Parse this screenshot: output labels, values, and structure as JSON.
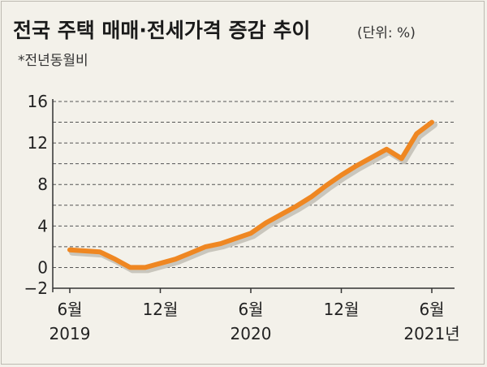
{
  "header": {
    "title": "전국 주택 매매·전세가격 증감 추이",
    "unit": "(단위: %)",
    "subtitle": "*전년동월비"
  },
  "chart_data": {
    "type": "line",
    "title": "전국 주택 매매·전세가격 증감 추이",
    "ylim": [
      -2,
      16
    ],
    "y_ticks": [
      "16",
      "12",
      "8",
      "4",
      "0",
      "−2"
    ],
    "y_tick_values": [
      16,
      12,
      8,
      4,
      0,
      -2
    ],
    "grid": true,
    "x_tick_labels": [
      {
        "month_index": 0,
        "lines": [
          "6월",
          "2019"
        ]
      },
      {
        "month_index": 6,
        "lines": [
          "12월"
        ]
      },
      {
        "month_index": 12,
        "lines": [
          "6월",
          "2020"
        ]
      },
      {
        "month_index": 18,
        "lines": [
          "12월"
        ]
      },
      {
        "month_index": 24,
        "lines": [
          "6월",
          "2021년"
        ]
      }
    ],
    "series": [
      {
        "color": "#ef8722",
        "months": [
          "2019-06",
          "2019-07",
          "2019-08",
          "2019-09",
          "2019-10",
          "2019-11",
          "2019-12",
          "2020-01",
          "2020-02",
          "2020-03",
          "2020-04",
          "2020-05",
          "2020-06",
          "2020-07",
          "2020-08",
          "2020-09",
          "2020-10",
          "2020-11",
          "2020-12",
          "2021-01",
          "2021-02",
          "2021-03",
          "2021-04",
          "2021-05",
          "2021-06"
        ],
        "values": [
          1.7,
          1.6,
          1.5,
          0.8,
          0.0,
          0.0,
          0.4,
          0.8,
          1.4,
          2.0,
          2.3,
          2.8,
          3.3,
          4.3,
          5.1,
          5.9,
          6.8,
          7.9,
          8.9,
          9.8,
          10.6,
          11.4,
          10.5,
          12.9,
          14.0
        ]
      }
    ]
  }
}
